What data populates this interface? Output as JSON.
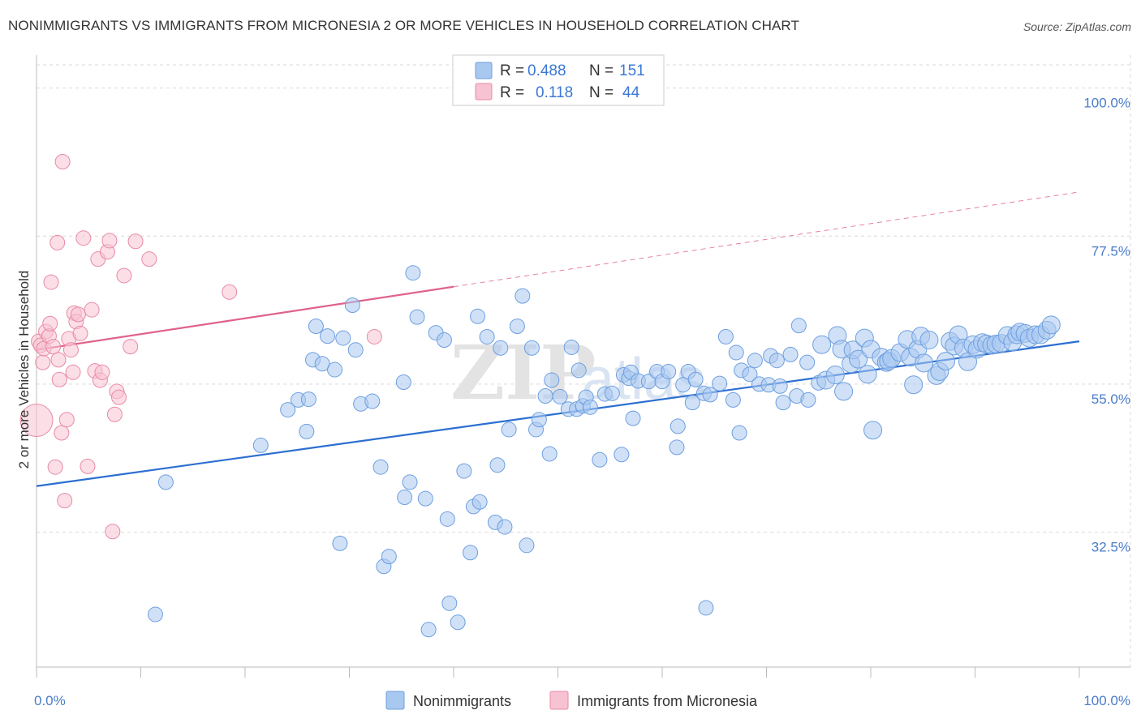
{
  "title": "NONIMMIGRANTS VS IMMIGRANTS FROM MICRONESIA 2 OR MORE VEHICLES IN HOUSEHOLD CORRELATION CHART",
  "source": "Source: ZipAtlas.com",
  "watermark": "ZIPatlas",
  "colors": {
    "blue_fill": "#a9c8f0",
    "blue_stroke": "#6d9fe0",
    "blue_line": "#2c6fd1",
    "pink_fill": "#f7c3d2",
    "pink_stroke": "#e88aa6",
    "pink_line": "#e0628a",
    "grid": "#d9d9d9",
    "tick_label": "#4a7cc9"
  },
  "legend_top": {
    "rows": [
      {
        "r_label": "R =",
        "r_value": "0.488",
        "n_label": "N =",
        "n_value": "151"
      },
      {
        "r_label": "R =",
        "r_value": "0.118",
        "n_label": "N =",
        "n_value": "44"
      }
    ]
  },
  "legend_bottom": [
    "Nonimmigrants",
    "Immigrants from Micronesia"
  ],
  "chart_data": {
    "type": "scatter",
    "title": "NONIMMIGRANTS VS IMMIGRANTS FROM MICRONESIA 2 OR MORE VEHICLES IN HOUSEHOLD CORRELATION CHART",
    "xlabel": "",
    "ylabel": "2 or more Vehicles in Household",
    "xlim": [
      0,
      100
    ],
    "ylim": [
      12,
      105
    ],
    "x_tick_labels": [
      "0.0%",
      "100.0%"
    ],
    "y_ticks": [
      32.5,
      55.0,
      77.5,
      100.0
    ],
    "y_tick_labels": [
      "32.5%",
      "55.0%",
      "77.5%",
      "100.0%"
    ],
    "grid": true,
    "series": [
      {
        "name": "Nonimmigrants",
        "color": "blue",
        "trend": {
          "x": [
            0,
            100
          ],
          "y": [
            39.5,
            61.5
          ],
          "style": "solid"
        },
        "points": [
          [
            12.4,
            40.1
          ],
          [
            11.4,
            20.0
          ],
          [
            21.5,
            45.7
          ],
          [
            24.1,
            51.1
          ],
          [
            25.1,
            52.6
          ],
          [
            25.9,
            47.8
          ],
          [
            26.1,
            52.7
          ],
          [
            26.5,
            58.7
          ],
          [
            26.8,
            63.8
          ],
          [
            27.4,
            58.1
          ],
          [
            27.9,
            62.3
          ],
          [
            28.6,
            57.2
          ],
          [
            29.1,
            30.8
          ],
          [
            29.4,
            62.0
          ],
          [
            30.3,
            67.0
          ],
          [
            30.6,
            60.2
          ],
          [
            31.1,
            52.0
          ],
          [
            32.2,
            52.4
          ],
          [
            33.0,
            42.4
          ],
          [
            33.3,
            27.3
          ],
          [
            33.8,
            28.8
          ],
          [
            35.2,
            55.3
          ],
          [
            35.3,
            37.8
          ],
          [
            35.8,
            40.1
          ],
          [
            36.1,
            71.9
          ],
          [
            36.5,
            65.2
          ],
          [
            37.3,
            37.6
          ],
          [
            37.6,
            17.7
          ],
          [
            38.3,
            62.8
          ],
          [
            39.1,
            61.7
          ],
          [
            39.4,
            34.5
          ],
          [
            39.6,
            21.7
          ],
          [
            40.4,
            18.8
          ],
          [
            41.0,
            41.8
          ],
          [
            41.6,
            29.4
          ],
          [
            41.9,
            36.4
          ],
          [
            42.3,
            65.3
          ],
          [
            42.5,
            37.1
          ],
          [
            43.2,
            62.2
          ],
          [
            44.0,
            34.0
          ],
          [
            44.2,
            42.7
          ],
          [
            44.5,
            60.5
          ],
          [
            44.9,
            33.3
          ],
          [
            45.3,
            48.1
          ],
          [
            46.1,
            63.8
          ],
          [
            46.6,
            68.4
          ],
          [
            47.0,
            30.5
          ],
          [
            47.5,
            60.5
          ],
          [
            47.9,
            48.1
          ],
          [
            48.2,
            49.6
          ],
          [
            48.8,
            53.2
          ],
          [
            49.2,
            44.4
          ],
          [
            49.4,
            55.6
          ],
          [
            50.2,
            53.1
          ],
          [
            51.0,
            51.2
          ],
          [
            51.3,
            60.6
          ],
          [
            51.8,
            51.2
          ],
          [
            52.0,
            57.1
          ],
          [
            52.4,
            51.7
          ],
          [
            52.7,
            53.0
          ],
          [
            53.1,
            51.5
          ],
          [
            54.0,
            43.5
          ],
          [
            54.5,
            53.5
          ],
          [
            55.2,
            53.6
          ],
          [
            56.1,
            44.3
          ],
          [
            56.3,
            56.4
          ],
          [
            56.8,
            55.9
          ],
          [
            57.0,
            56.8
          ],
          [
            57.2,
            49.8
          ],
          [
            57.7,
            55.5
          ],
          [
            58.7,
            55.4
          ],
          [
            59.5,
            56.9
          ],
          [
            60.0,
            55.4
          ],
          [
            60.6,
            56.9
          ],
          [
            61.4,
            45.4
          ],
          [
            61.5,
            48.6
          ],
          [
            62.0,
            54.9
          ],
          [
            62.5,
            56.9
          ],
          [
            62.9,
            52.2
          ],
          [
            63.2,
            55.7
          ],
          [
            64.0,
            53.6
          ],
          [
            64.6,
            53.4
          ],
          [
            65.5,
            55.1
          ],
          [
            66.1,
            62.2
          ],
          [
            66.8,
            52.6
          ],
          [
            67.1,
            59.8
          ],
          [
            67.4,
            47.6
          ],
          [
            67.6,
            57.1
          ],
          [
            68.4,
            56.5
          ],
          [
            68.9,
            58.6
          ],
          [
            69.3,
            55.0
          ],
          [
            70.2,
            54.9
          ],
          [
            70.4,
            59.3
          ],
          [
            71.0,
            58.6
          ],
          [
            71.3,
            54.7
          ],
          [
            71.6,
            52.2
          ],
          [
            72.3,
            59.5
          ],
          [
            72.9,
            53.2
          ],
          [
            73.1,
            63.9
          ],
          [
            73.9,
            58.3
          ],
          [
            74.0,
            52.6
          ],
          [
            75.0,
            55.2
          ],
          [
            75.3,
            61.0
          ],
          [
            75.7,
            55.6
          ],
          [
            76.6,
            56.4
          ],
          [
            76.8,
            62.4
          ],
          [
            77.2,
            60.3
          ],
          [
            77.4,
            53.9
          ],
          [
            78.1,
            58.1
          ],
          [
            78.3,
            60.2
          ],
          [
            78.8,
            58.8
          ],
          [
            79.4,
            62.0
          ],
          [
            79.7,
            56.5
          ],
          [
            80.0,
            60.3
          ],
          [
            80.2,
            48.0
          ],
          [
            81.0,
            59.1
          ],
          [
            81.5,
            58.3
          ],
          [
            81.7,
            58.5
          ],
          [
            82.0,
            58.9
          ],
          [
            82.8,
            59.8
          ],
          [
            83.5,
            61.8
          ],
          [
            83.8,
            59.1
          ],
          [
            84.1,
            54.9
          ],
          [
            84.5,
            60.3
          ],
          [
            84.8,
            62.3
          ],
          [
            85.1,
            58.2
          ],
          [
            85.6,
            61.7
          ],
          [
            86.3,
            56.3
          ],
          [
            86.6,
            56.9
          ],
          [
            87.2,
            58.5
          ],
          [
            87.6,
            61.5
          ],
          [
            88.0,
            60.8
          ],
          [
            88.4,
            62.5
          ],
          [
            88.9,
            60.5
          ],
          [
            89.3,
            58.4
          ],
          [
            89.8,
            61.0
          ],
          [
            90.2,
            60.3
          ],
          [
            90.7,
            61.3
          ],
          [
            91.1,
            61.1
          ],
          [
            91.6,
            60.9
          ],
          [
            92.0,
            61.1
          ],
          [
            92.5,
            61.2
          ],
          [
            93.1,
            62.4
          ],
          [
            93.6,
            61.4
          ],
          [
            94.0,
            62.5
          ],
          [
            94.3,
            62.9
          ],
          [
            94.8,
            62.7
          ],
          [
            95.2,
            62.0
          ],
          [
            95.8,
            62.5
          ],
          [
            96.3,
            62.5
          ],
          [
            96.9,
            63.2
          ],
          [
            97.3,
            64.0
          ],
          [
            64.2,
            21.0
          ]
        ]
      },
      {
        "name": "Immigrants from Micronesia",
        "color": "pink",
        "trend": {
          "x": [
            0,
            40
          ],
          "y": [
            60.2,
            69.8
          ],
          "style": "solid",
          "ext_x": [
            40,
            100
          ],
          "ext_y": [
            69.8,
            84.2
          ]
        },
        "points": [
          [
            0.0,
            49.5
          ],
          [
            0.2,
            61.5
          ],
          [
            0.4,
            60.9
          ],
          [
            0.6,
            58.3
          ],
          [
            0.7,
            60.4
          ],
          [
            0.9,
            63.0
          ],
          [
            1.2,
            62.3
          ],
          [
            1.3,
            64.2
          ],
          [
            1.4,
            70.5
          ],
          [
            1.6,
            60.7
          ],
          [
            1.8,
            42.4
          ],
          [
            2.0,
            76.5
          ],
          [
            2.1,
            58.7
          ],
          [
            2.2,
            55.7
          ],
          [
            2.4,
            47.6
          ],
          [
            2.5,
            88.8
          ],
          [
            2.7,
            37.3
          ],
          [
            2.9,
            49.6
          ],
          [
            3.1,
            61.9
          ],
          [
            3.3,
            60.2
          ],
          [
            3.5,
            56.8
          ],
          [
            3.6,
            65.8
          ],
          [
            3.8,
            64.5
          ],
          [
            4.0,
            65.6
          ],
          [
            4.2,
            62.7
          ],
          [
            4.5,
            77.2
          ],
          [
            4.9,
            42.5
          ],
          [
            5.3,
            66.3
          ],
          [
            5.6,
            57.0
          ],
          [
            5.9,
            74.0
          ],
          [
            6.1,
            55.6
          ],
          [
            6.3,
            56.8
          ],
          [
            6.8,
            75.1
          ],
          [
            7.0,
            76.8
          ],
          [
            7.3,
            32.6
          ],
          [
            7.5,
            50.4
          ],
          [
            7.7,
            53.9
          ],
          [
            7.9,
            53.0
          ],
          [
            8.4,
            71.5
          ],
          [
            9.0,
            60.7
          ],
          [
            9.5,
            76.7
          ],
          [
            10.8,
            74.0
          ],
          [
            18.5,
            69.0
          ],
          [
            32.4,
            62.2
          ]
        ]
      }
    ]
  }
}
